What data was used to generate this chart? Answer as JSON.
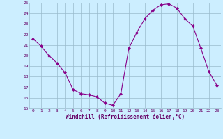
{
  "x": [
    0,
    1,
    2,
    3,
    4,
    5,
    6,
    7,
    8,
    9,
    10,
    11,
    12,
    13,
    14,
    15,
    16,
    17,
    18,
    19,
    20,
    21,
    22,
    23
  ],
  "y": [
    21.6,
    20.9,
    20.0,
    19.3,
    18.4,
    16.8,
    16.4,
    16.3,
    16.1,
    15.5,
    15.3,
    16.4,
    20.7,
    22.2,
    23.5,
    24.3,
    24.8,
    24.9,
    24.5,
    23.5,
    22.8,
    20.7,
    18.5,
    17.2
  ],
  "xlabel": "Windchill (Refroidissement éolien,°C)",
  "ylim": [
    15,
    25
  ],
  "xlim": [
    -0.5,
    23.5
  ],
  "yticks": [
    15,
    16,
    17,
    18,
    19,
    20,
    21,
    22,
    23,
    24,
    25
  ],
  "xticks": [
    0,
    1,
    2,
    3,
    4,
    5,
    6,
    7,
    8,
    9,
    10,
    11,
    12,
    13,
    14,
    15,
    16,
    17,
    18,
    19,
    20,
    21,
    22,
    23
  ],
  "line_color": "#880088",
  "marker_color": "#880088",
  "bg_color": "#cceeff",
  "grid_color": "#99bbcc",
  "tick_label_color": "#660066",
  "xlabel_color": "#660066"
}
